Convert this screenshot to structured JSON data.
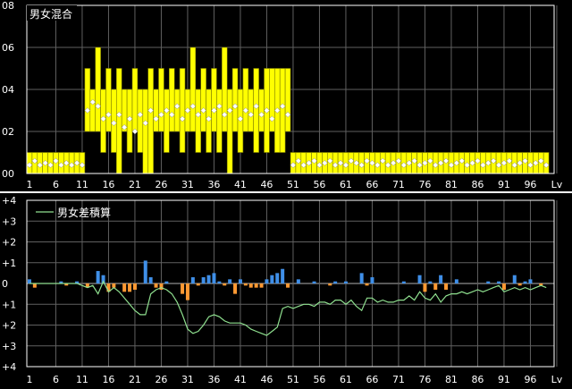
{
  "chart_data": [
    {
      "type": "bar",
      "title": "男女混合",
      "x_tick_labels": [
        "1",
        "6",
        "11",
        "16",
        "21",
        "26",
        "31",
        "36",
        "41",
        "46",
        "51",
        "56",
        "61",
        "66",
        "71",
        "76",
        "81",
        "86",
        "91",
        "96",
        "Lv"
      ],
      "y_tick_labels": [
        "08",
        "06",
        "04",
        "02",
        "00"
      ],
      "ylim": [
        0,
        8
      ],
      "grid": true,
      "x": [
        1,
        2,
        3,
        4,
        5,
        6,
        7,
        8,
        9,
        10,
        11,
        12,
        13,
        14,
        15,
        16,
        17,
        18,
        19,
        20,
        21,
        22,
        23,
        24,
        25,
        26,
        27,
        28,
        29,
        30,
        31,
        32,
        33,
        34,
        35,
        36,
        37,
        38,
        39,
        40,
        41,
        42,
        43,
        44,
        45,
        46,
        47,
        48,
        49,
        50,
        51,
        52,
        53,
        54,
        55,
        56,
        57,
        58,
        59,
        60,
        61,
        62,
        63,
        64,
        65,
        66,
        67,
        68,
        69,
        70,
        71,
        72,
        73,
        74,
        75,
        76,
        77,
        78,
        79,
        80,
        81,
        82,
        83,
        84,
        85,
        86,
        87,
        88,
        89,
        90,
        91,
        92,
        93,
        94,
        95,
        96,
        97,
        98,
        99
      ],
      "series": [
        {
          "kind": "range_bar",
          "color": "#ffff00",
          "low": [
            0,
            0,
            0,
            0,
            0,
            0,
            0,
            0,
            0,
            0,
            0,
            2,
            2,
            2,
            1,
            2,
            1,
            0,
            2,
            1,
            2,
            1,
            0,
            0,
            2,
            2,
            1,
            2,
            2,
            1,
            2,
            2,
            1,
            2,
            1,
            2,
            1,
            2,
            0,
            2,
            1,
            2,
            2,
            1,
            2,
            1,
            2,
            1,
            1,
            2,
            0,
            0,
            0,
            0,
            0,
            0,
            0,
            0,
            0,
            0,
            0,
            0,
            0,
            0,
            0,
            0,
            0,
            0,
            0,
            0,
            0,
            0,
            0,
            0,
            0,
            0,
            0,
            0,
            0,
            0,
            0,
            0,
            0,
            0,
            0,
            0,
            0,
            0,
            0,
            0,
            0,
            0,
            0,
            0,
            0,
            0,
            0,
            0,
            0
          ],
          "high": [
            1,
            1,
            1,
            1,
            1,
            1,
            1,
            1,
            1,
            1,
            1,
            5,
            4,
            6,
            4,
            5,
            4,
            5,
            4,
            4,
            5,
            4,
            4,
            5,
            4,
            5,
            4,
            5,
            4,
            5,
            4,
            6,
            4,
            5,
            4,
            5,
            4,
            6,
            4,
            5,
            4,
            5,
            4,
            5,
            4,
            5,
            5,
            5,
            5,
            5,
            1,
            1,
            1,
            1,
            1,
            1,
            1,
            1,
            1,
            1,
            1,
            1,
            1,
            1,
            1,
            1,
            1,
            1,
            1,
            1,
            1,
            1,
            1,
            1,
            1,
            1,
            1,
            1,
            1,
            1,
            1,
            1,
            1,
            1,
            1,
            1,
            1,
            1,
            1,
            1,
            1,
            1,
            1,
            1,
            1,
            1,
            1,
            1,
            1
          ]
        },
        {
          "kind": "average_marker",
          "color": "#ffffff",
          "values": [
            0.4,
            0.6,
            0.4,
            0.5,
            0.4,
            0.6,
            0.4,
            0.5,
            0.4,
            0.5,
            0.4,
            3.0,
            3.4,
            3.2,
            2.6,
            2.8,
            2.4,
            2.8,
            2.2,
            2.6,
            2.0,
            2.8,
            2.4,
            3.0,
            2.6,
            2.8,
            3.0,
            2.8,
            3.2,
            2.6,
            3.0,
            3.2,
            2.8,
            3.0,
            2.6,
            3.0,
            3.2,
            2.8,
            3.0,
            3.2,
            2.6,
            3.0,
            2.8,
            3.2,
            2.8,
            3.0,
            2.6,
            3.0,
            3.2,
            2.8,
            0.4,
            0.6,
            0.4,
            0.5,
            0.6,
            0.4,
            0.5,
            0.6,
            0.4,
            0.5,
            0.4,
            0.6,
            0.5,
            0.4,
            0.6,
            0.5,
            0.4,
            0.6,
            0.4,
            0.5,
            0.6,
            0.4,
            0.5,
            0.6,
            0.4,
            0.5,
            0.6,
            0.4,
            0.5,
            0.6,
            0.4,
            0.5,
            0.6,
            0.4,
            0.5,
            0.6,
            0.4,
            0.5,
            0.6,
            0.4,
            0.5,
            0.6,
            0.4,
            0.5,
            0.6,
            0.4,
            0.5,
            0.6,
            0.4
          ]
        }
      ]
    },
    {
      "type": "bar",
      "legend": "男女差積算",
      "x_tick_labels": [
        "1",
        "6",
        "11",
        "16",
        "21",
        "26",
        "31",
        "36",
        "41",
        "46",
        "51",
        "56",
        "61",
        "66",
        "71",
        "76",
        "81",
        "86",
        "91",
        "96",
        "Lv"
      ],
      "y_tick_labels": [
        "+4",
        "+3",
        "+2",
        "+1",
        "0",
        "+1",
        "+2",
        "+3",
        "+4"
      ],
      "ylim": [
        -4,
        4
      ],
      "grid": true,
      "x": [
        1,
        2,
        3,
        4,
        5,
        6,
        7,
        8,
        9,
        10,
        11,
        12,
        13,
        14,
        15,
        16,
        17,
        18,
        19,
        20,
        21,
        22,
        23,
        24,
        25,
        26,
        27,
        28,
        29,
        30,
        31,
        32,
        33,
        34,
        35,
        36,
        37,
        38,
        39,
        40,
        41,
        42,
        43,
        44,
        45,
        46,
        47,
        48,
        49,
        50,
        51,
        52,
        53,
        54,
        55,
        56,
        57,
        58,
        59,
        60,
        61,
        62,
        63,
        64,
        65,
        66,
        67,
        68,
        69,
        70,
        71,
        72,
        73,
        74,
        75,
        76,
        77,
        78,
        79,
        80,
        81,
        82,
        83,
        84,
        85,
        86,
        87,
        88,
        89,
        90,
        91,
        92,
        93,
        94,
        95,
        96,
        97,
        98,
        99
      ],
      "series": [
        {
          "kind": "diff_bar",
          "positive_color": "#3f8fe8",
          "negative_color": "#ff9933",
          "values": [
            0.2,
            -0.2,
            0,
            0,
            0,
            0,
            0.1,
            -0.1,
            0,
            0.1,
            0,
            -0.2,
            0,
            0.6,
            0.4,
            -0.4,
            -0.2,
            0,
            -0.4,
            -0.4,
            -0.3,
            0,
            1.1,
            0.3,
            -0.2,
            -0.3,
            0.1,
            0,
            0,
            -0.5,
            -0.8,
            0.3,
            -0.1,
            0.3,
            0.4,
            0.5,
            0.1,
            -0.1,
            0.2,
            -0.5,
            0.2,
            -0.1,
            -0.2,
            -0.2,
            -0.2,
            0.2,
            0.4,
            0.5,
            0.7,
            -0.2,
            0,
            0.2,
            0,
            0,
            0.1,
            0,
            0,
            -0.1,
            0.1,
            0,
            0.1,
            0,
            0,
            0.5,
            -0.1,
            0.3,
            0,
            0,
            0,
            0,
            0,
            0.1,
            0,
            0,
            0.4,
            -0.4,
            0.1,
            -0.3,
            0.4,
            -0.3,
            0,
            0.2,
            0,
            0,
            0,
            0,
            0,
            0.1,
            0,
            0.1,
            -0.3,
            0,
            0.4,
            -0.1,
            0.1,
            0.2,
            0,
            -0.1,
            0
          ]
        },
        {
          "kind": "cumulative_line",
          "color": "#8fe08f",
          "values": [
            0,
            0,
            0,
            0,
            0,
            0,
            0,
            0,
            0,
            0,
            -0.1,
            -0.2,
            -0.1,
            -0.5,
            0.1,
            -0.4,
            -0.2,
            -0.4,
            -0.7,
            -1.0,
            -1.3,
            -1.5,
            -1.5,
            -0.5,
            -0.3,
            -0.2,
            -0.3,
            -0.5,
            -0.9,
            -1.5,
            -2.2,
            -2.4,
            -2.3,
            -2.0,
            -1.6,
            -1.5,
            -1.6,
            -1.8,
            -1.9,
            -1.9,
            -1.9,
            -2.0,
            -2.2,
            -2.3,
            -2.4,
            -2.5,
            -2.3,
            -2.1,
            -1.2,
            -1.1,
            -1.2,
            -1.1,
            -1.0,
            -1.0,
            -1.1,
            -0.9,
            -0.9,
            -1.0,
            -0.8,
            -0.8,
            -1.0,
            -0.8,
            -1.1,
            -1.3,
            -0.7,
            -0.7,
            -0.9,
            -0.8,
            -0.9,
            -0.9,
            -0.8,
            -0.8,
            -0.6,
            -0.8,
            -0.4,
            -0.7,
            -0.8,
            -0.5,
            -0.9,
            -0.6,
            -0.5,
            -0.5,
            -0.4,
            -0.5,
            -0.4,
            -0.3,
            -0.4,
            -0.3,
            -0.2,
            -0.1,
            -0.4,
            -0.3,
            -0.2,
            -0.3,
            -0.2,
            -0.3,
            -0.2,
            -0.1,
            -0.2
          ]
        }
      ]
    }
  ]
}
